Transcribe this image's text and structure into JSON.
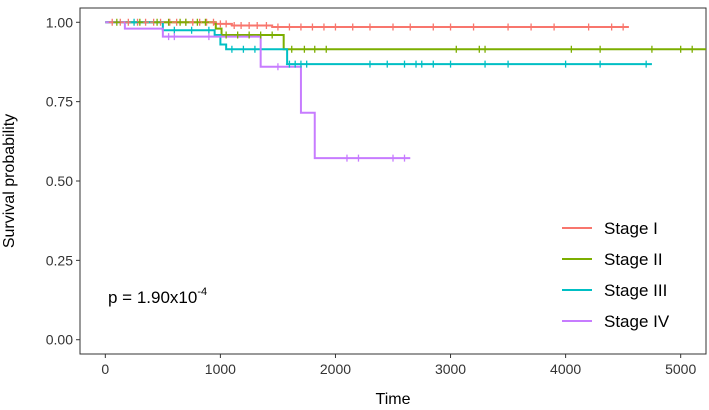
{
  "chart_data": {
    "type": "line",
    "subtype": "kaplan-meier",
    "xlabel": "Time",
    "ylabel": "Survival probability",
    "xlim": [
      -220,
      5220
    ],
    "ylim": [
      -0.045,
      1.045
    ],
    "x_ticks": [
      0,
      1000,
      2000,
      3000,
      4000,
      5000
    ],
    "x_tick_labels": [
      "0",
      "1000",
      "2000",
      "3000",
      "4000",
      "5000"
    ],
    "y_ticks": [
      0.0,
      0.25,
      0.5,
      0.75,
      1.0
    ],
    "y_tick_labels": [
      "0.00",
      "0.25",
      "0.50",
      "0.75",
      "1.00"
    ],
    "grid": false,
    "legend_position": "bottom-right",
    "annotation": {
      "text": "p = 1.90x10",
      "superscript": "-4"
    },
    "series": [
      {
        "name": "Stage I",
        "color": "#F8766D",
        "steps": [
          [
            0,
            1.0
          ],
          [
            950,
            0.995
          ],
          [
            1100,
            0.99
          ],
          [
            1450,
            0.985
          ],
          [
            4550,
            0.985
          ]
        ],
        "censor_times": [
          60,
          130,
          200,
          280,
          350,
          420,
          480,
          560,
          620,
          700,
          760,
          820,
          880,
          940,
          1000,
          1050,
          1120,
          1180,
          1250,
          1320,
          1400,
          1500,
          1600,
          1700,
          1800,
          1900,
          2000,
          2150,
          2300,
          2500,
          2650,
          2850,
          3000,
          3200,
          3500,
          3700,
          3900,
          4200,
          4400,
          4500
        ]
      },
      {
        "name": "Stage II",
        "color": "#7CAE00",
        "steps": [
          [
            0,
            1.0
          ],
          [
            960,
            0.98
          ],
          [
            1010,
            0.96
          ],
          [
            1550,
            0.915
          ],
          [
            5220,
            0.915
          ]
        ],
        "censor_times": [
          100,
          300,
          450,
          550,
          650,
          700,
          800,
          870,
          1050,
          1150,
          1250,
          1350,
          1450,
          1620,
          1730,
          1820,
          1920,
          3050,
          3250,
          3300,
          4050,
          4300,
          4750,
          5000,
          5100
        ]
      },
      {
        "name": "Stage III",
        "color": "#00BFC4",
        "steps": [
          [
            0,
            1.0
          ],
          [
            500,
            0.975
          ],
          [
            950,
            0.96
          ],
          [
            1000,
            0.93
          ],
          [
            1050,
            0.915
          ],
          [
            1580,
            0.868
          ],
          [
            4750,
            0.868
          ]
        ],
        "censor_times": [
          250,
          600,
          750,
          900,
          1100,
          1200,
          1300,
          1600,
          1650,
          1700,
          1750,
          2300,
          2450,
          2600,
          2700,
          2750,
          2850,
          3000,
          3300,
          3500,
          4000,
          4300,
          4700
        ]
      },
      {
        "name": "Stage IV",
        "color": "#C77CFF",
        "steps": [
          [
            0,
            1.0
          ],
          [
            170,
            0.98
          ],
          [
            500,
            0.955
          ],
          [
            1350,
            0.86
          ],
          [
            1700,
            0.715
          ],
          [
            1820,
            0.572
          ],
          [
            2650,
            0.572
          ]
        ],
        "censor_times": [
          550,
          600,
          900,
          1500,
          2100,
          2200,
          2500,
          2600
        ]
      }
    ]
  }
}
